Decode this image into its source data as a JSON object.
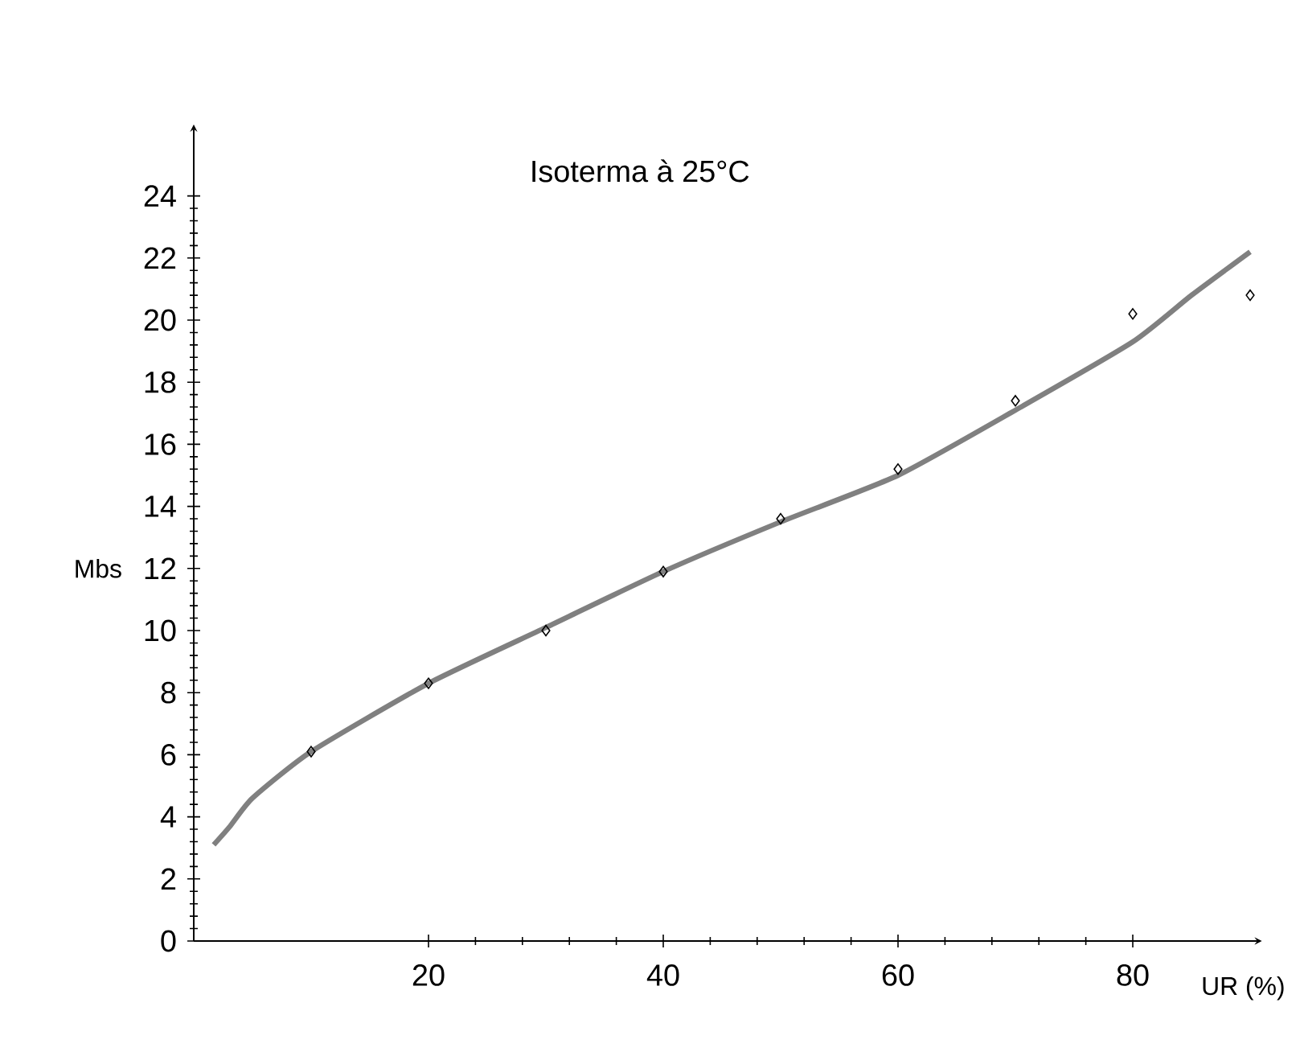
{
  "chart_data": {
    "type": "scatter",
    "title": "Isoterma à 25°C",
    "xlabel": "UR (%)",
    "ylabel": "Mbs",
    "xlim": [
      0,
      91
    ],
    "ylim": [
      0,
      26.3
    ],
    "xticks": [
      20,
      40,
      60,
      80
    ],
    "yticks": [
      0,
      2,
      4,
      6,
      8,
      10,
      12,
      14,
      16,
      18,
      20,
      22,
      24
    ],
    "marker": "diamond",
    "grid": false,
    "series": [
      {
        "color": "#000000",
        "x": [
          10,
          20,
          30,
          40,
          50,
          60,
          70,
          80,
          90
        ],
        "values": [
          6.1,
          8.3,
          10.0,
          11.9,
          13.6,
          15.2,
          17.4,
          20.2,
          20.8
        ]
      },
      {
        "type": "line",
        "marker": "none",
        "color": "#808080",
        "x": [
          1.7,
          3.1,
          5.0,
          10,
          20,
          30,
          40,
          50,
          60,
          70,
          80,
          85,
          90
        ],
        "values": [
          3.1,
          3.7,
          4.6,
          6.1,
          8.3,
          10.1,
          11.9,
          13.5,
          15.0,
          17.1,
          19.3,
          20.8,
          22.2
        ]
      }
    ]
  }
}
